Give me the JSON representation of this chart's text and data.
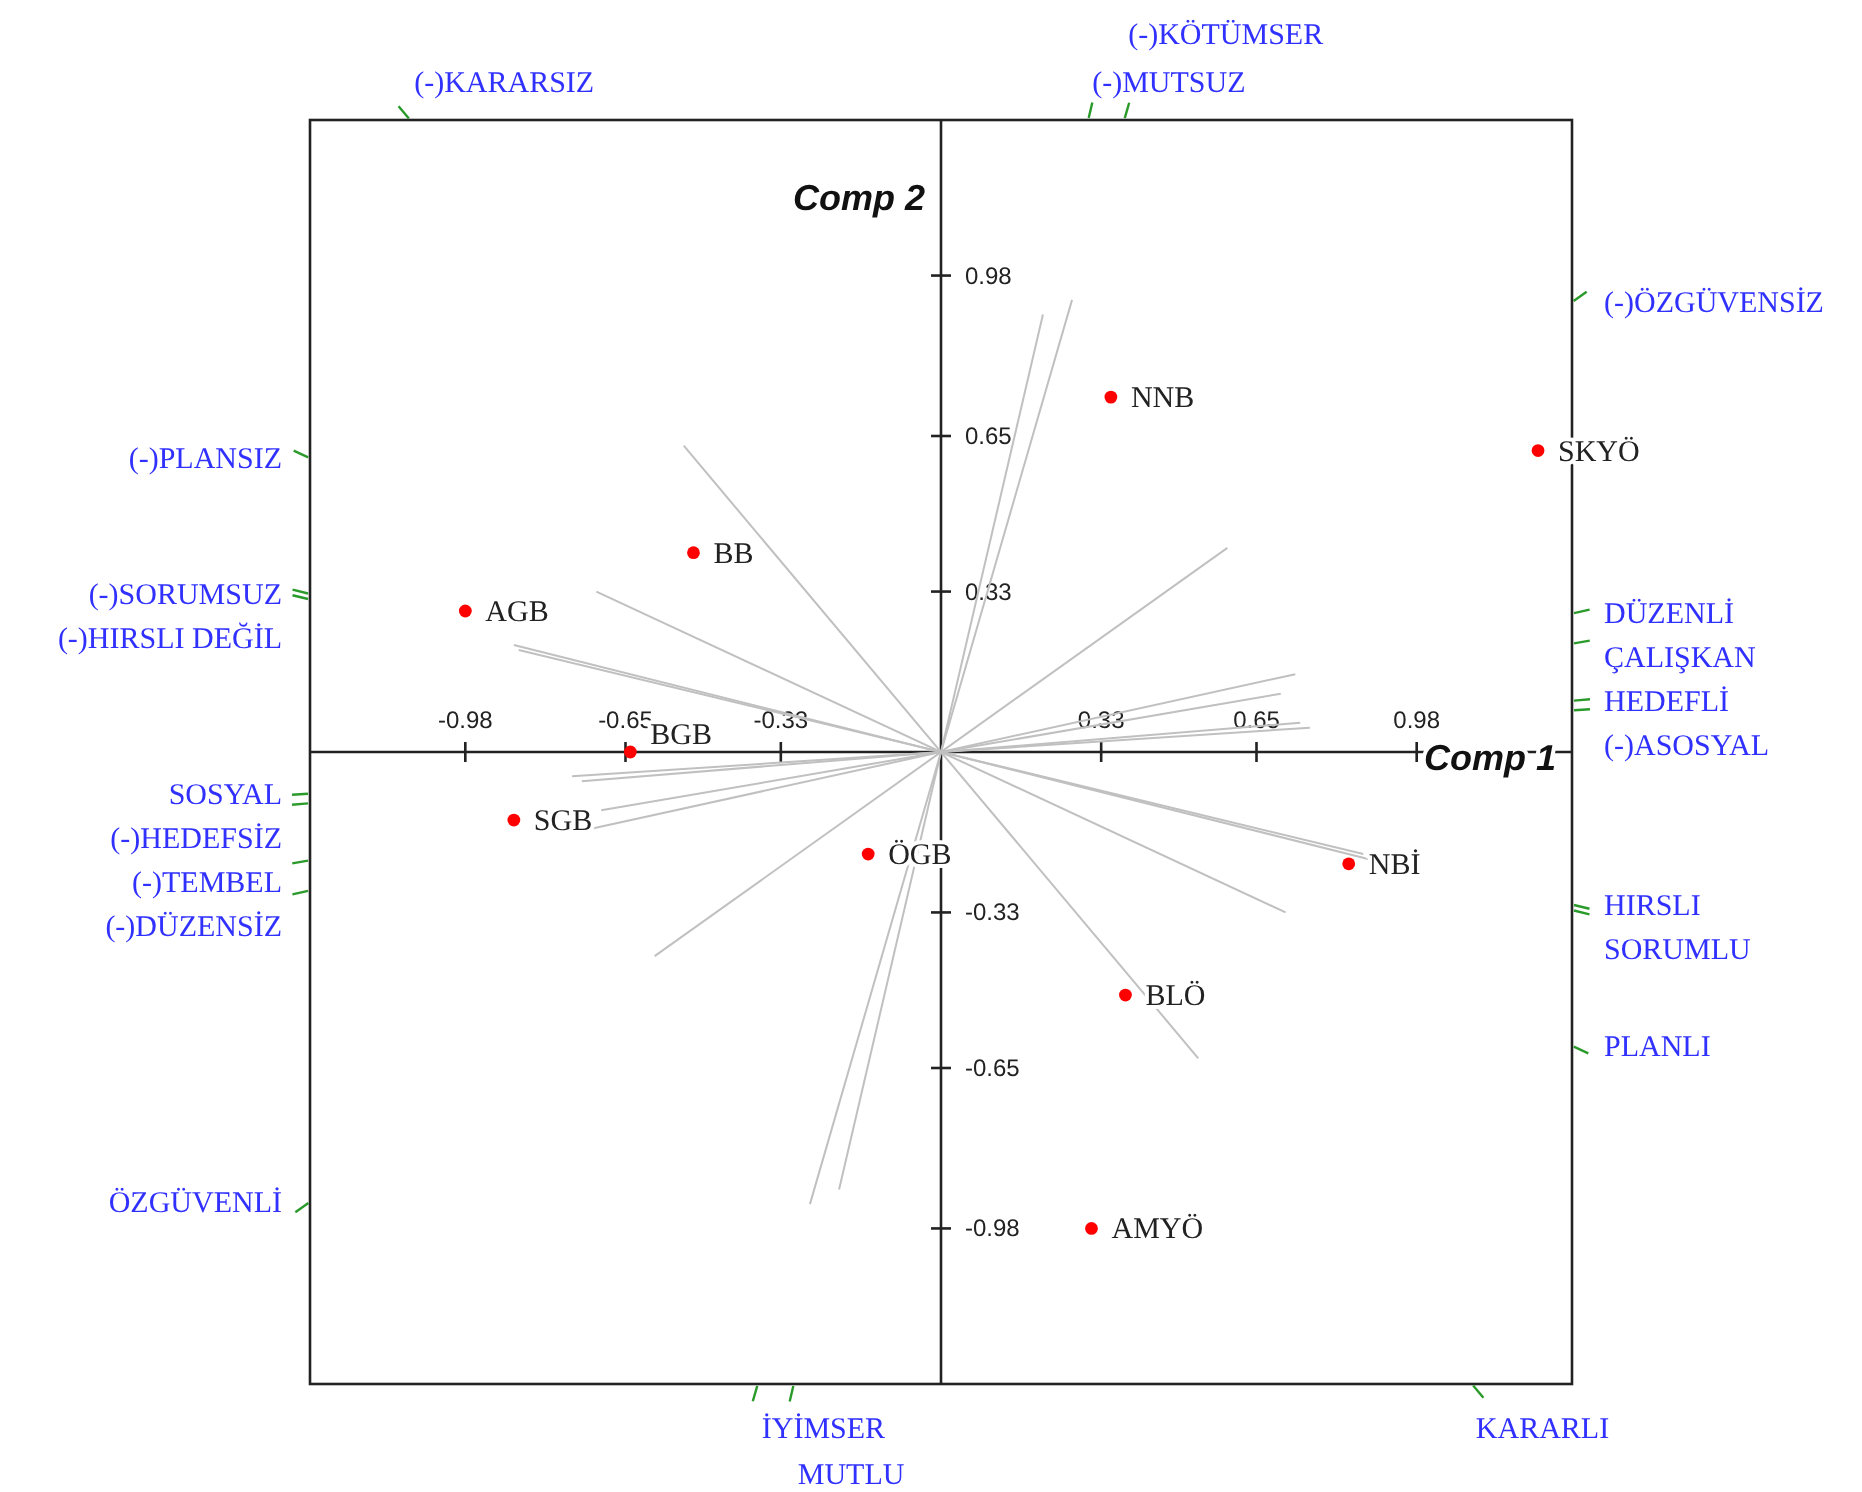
{
  "chart_data": {
    "type": "scatter",
    "xlabel": "Comp 1",
    "ylabel": "Comp 2",
    "xlim": [
      -1.3,
      1.3
    ],
    "ylim": [
      -1.3,
      1.3
    ],
    "xticks": [
      -0.98,
      -0.65,
      -0.33,
      0.33,
      0.65,
      0.98
    ],
    "yticks": [
      -0.98,
      -0.65,
      -0.33,
      0.33,
      0.65,
      0.98
    ],
    "series": [
      {
        "color": "#ff0000",
        "marker": "circle",
        "x": [
          0.35,
          1.23,
          -0.51,
          -0.98,
          -0.64,
          -0.88,
          -0.15,
          0.84,
          0.38,
          0.31
        ],
        "values": [
          0.73,
          0.62,
          0.41,
          0.29,
          0.0,
          -0.14,
          -0.21,
          -0.23,
          -0.5,
          -0.98
        ]
      },
      {
        "type": "line",
        "color": "#c0c0c0",
        "x": [
          -0.53,
          0.53
        ],
        "values": [
          0.63,
          -0.63
        ]
      },
      {
        "type": "line",
        "color": "#c0c0c0",
        "x": [
          0.21,
          -0.21
        ],
        "values": [
          0.9,
          -0.9
        ]
      },
      {
        "type": "line",
        "color": "#c0c0c0",
        "x": [
          0.27,
          -0.27
        ],
        "values": [
          0.93,
          -0.93
        ]
      },
      {
        "type": "line",
        "color": "#c0c0c0",
        "x": [
          0.59,
          -0.59
        ],
        "values": [
          0.42,
          -0.42
        ]
      },
      {
        "type": "line",
        "color": "#c0c0c0",
        "x": [
          -0.71,
          0.71
        ],
        "values": [
          0.33,
          -0.33
        ]
      },
      {
        "type": "line",
        "color": "#c0c0c0",
        "x": [
          -0.87,
          0.87
        ],
        "values": [
          0.21,
          -0.21
        ]
      },
      {
        "type": "line",
        "color": "#c0c0c0",
        "x": [
          -0.88,
          0.88
        ],
        "values": [
          0.22,
          -0.22
        ]
      },
      {
        "type": "line",
        "color": "#c0c0c0",
        "x": [
          -0.73,
          0.73
        ],
        "values": [
          -0.16,
          0.16
        ]
      },
      {
        "type": "line",
        "color": "#c0c0c0",
        "x": [
          -0.7,
          0.7
        ],
        "values": [
          -0.12,
          0.12
        ]
      },
      {
        "type": "line",
        "color": "#c0c0c0",
        "x": [
          -0.74,
          0.74
        ],
        "values": [
          -0.06,
          0.06
        ]
      },
      {
        "type": "line",
        "color": "#c0c0c0",
        "x": [
          0.76,
          -0.76
        ],
        "values": [
          0.05,
          -0.05
        ]
      }
    ],
    "annotations": [
      {
        "text": "NNB",
        "x": 0.35,
        "y": 0.73
      },
      {
        "text": "SKYÖ",
        "x": 1.23,
        "y": 0.62
      },
      {
        "text": "BB",
        "x": -0.51,
        "y": 0.41
      },
      {
        "text": "AGB",
        "x": -0.98,
        "y": 0.29
      },
      {
        "text": "BGB",
        "x": -0.64,
        "y": 0.0
      },
      {
        "text": "SGB",
        "x": -0.88,
        "y": -0.14
      },
      {
        "text": "ÖGB",
        "x": -0.15,
        "y": -0.21
      },
      {
        "text": "NBİ",
        "x": 0.84,
        "y": -0.23
      },
      {
        "text": "BLÖ",
        "x": 0.38,
        "y": -0.5
      },
      {
        "text": "AMYÖ",
        "x": 0.31,
        "y": -0.98
      },
      "KARARLI",
      "(-)KARARSIZ",
      "MUTLU",
      "(-)MUTSUZ",
      "İYİMSER",
      "(-)KÖTÜMSER",
      "ÖZGÜVENLİ",
      "(-)ÖZGÜVENSİZ",
      "PLANLI",
      "(-)PLANSIZ",
      "HIRSLI",
      "(-)HIRSLI DEĞİL",
      "SORUMLU",
      "(-)SORUMSUZ",
      "DÜZENLİ",
      "(-)DÜZENSİZ",
      "ÇALIŞKAN",
      "(-)TEMBEL",
      "HEDEFLİ",
      "(-)HEDEFSİZ",
      "SOSYAL",
      "(-)ASOSYAL"
    ]
  }
}
